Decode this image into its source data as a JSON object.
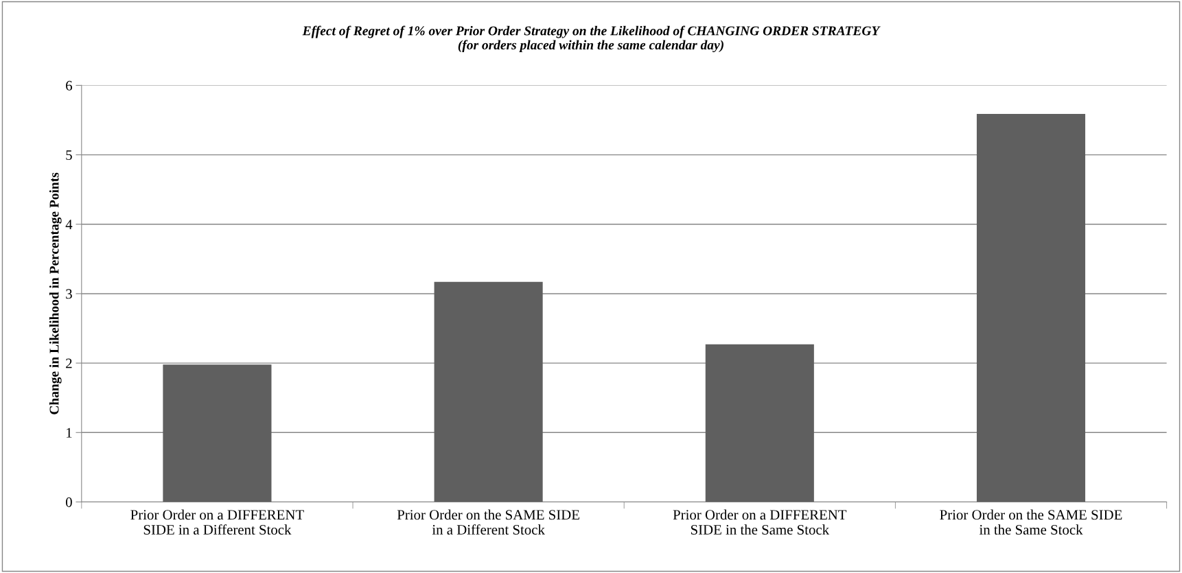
{
  "chart_data": {
    "type": "bar",
    "title": "Effect of Regret of 1% over Prior Order Strategy on the Likelihood of CHANGING ORDER STRATEGY\n(for orders placed within the same calendar day)",
    "ylabel": "Change in Likelihood in Percentage Points",
    "categories": [
      "Prior Order on a DIFFERENT\nSIDE in a Different Stock",
      "Prior Order on the SAME SIDE\nin a Different Stock",
      "Prior Order on a DIFFERENT\nSIDE in the Same Stock",
      "Prior Order on the SAME SIDE\nin the Same Stock"
    ],
    "values": [
      1.98,
      3.17,
      2.27,
      5.59
    ],
    "color": "#5f5f5f",
    "ylim": [
      0,
      6
    ],
    "yticks": [
      0,
      1,
      2,
      3,
      4,
      5,
      6
    ],
    "grid": "y"
  }
}
